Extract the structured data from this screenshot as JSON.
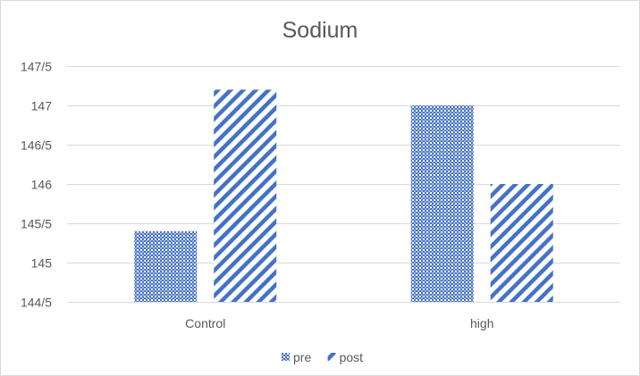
{
  "chart_data": {
    "type": "bar",
    "title": "Sodium",
    "categories": [
      "Control",
      "high"
    ],
    "series": [
      {
        "name": "pre",
        "values": [
          145.4,
          147.0
        ],
        "color": "#4472c4",
        "pattern": "crosshatch"
      },
      {
        "name": "post",
        "values": [
          147.2,
          146.0
        ],
        "color": "#4472c4",
        "pattern": "diagonal-stripes"
      }
    ],
    "yticks": [
      {
        "value": 144.5,
        "label": "144/5"
      },
      {
        "value": 145.0,
        "label": "145"
      },
      {
        "value": 145.5,
        "label": "145/5"
      },
      {
        "value": 146.0,
        "label": "146"
      },
      {
        "value": 146.5,
        "label": "146/5"
      },
      {
        "value": 147.0,
        "label": "147"
      },
      {
        "value": 147.5,
        "label": "147/5"
      }
    ],
    "ylim": [
      144.5,
      147.5
    ],
    "grid": true,
    "legend_position": "bottom"
  }
}
